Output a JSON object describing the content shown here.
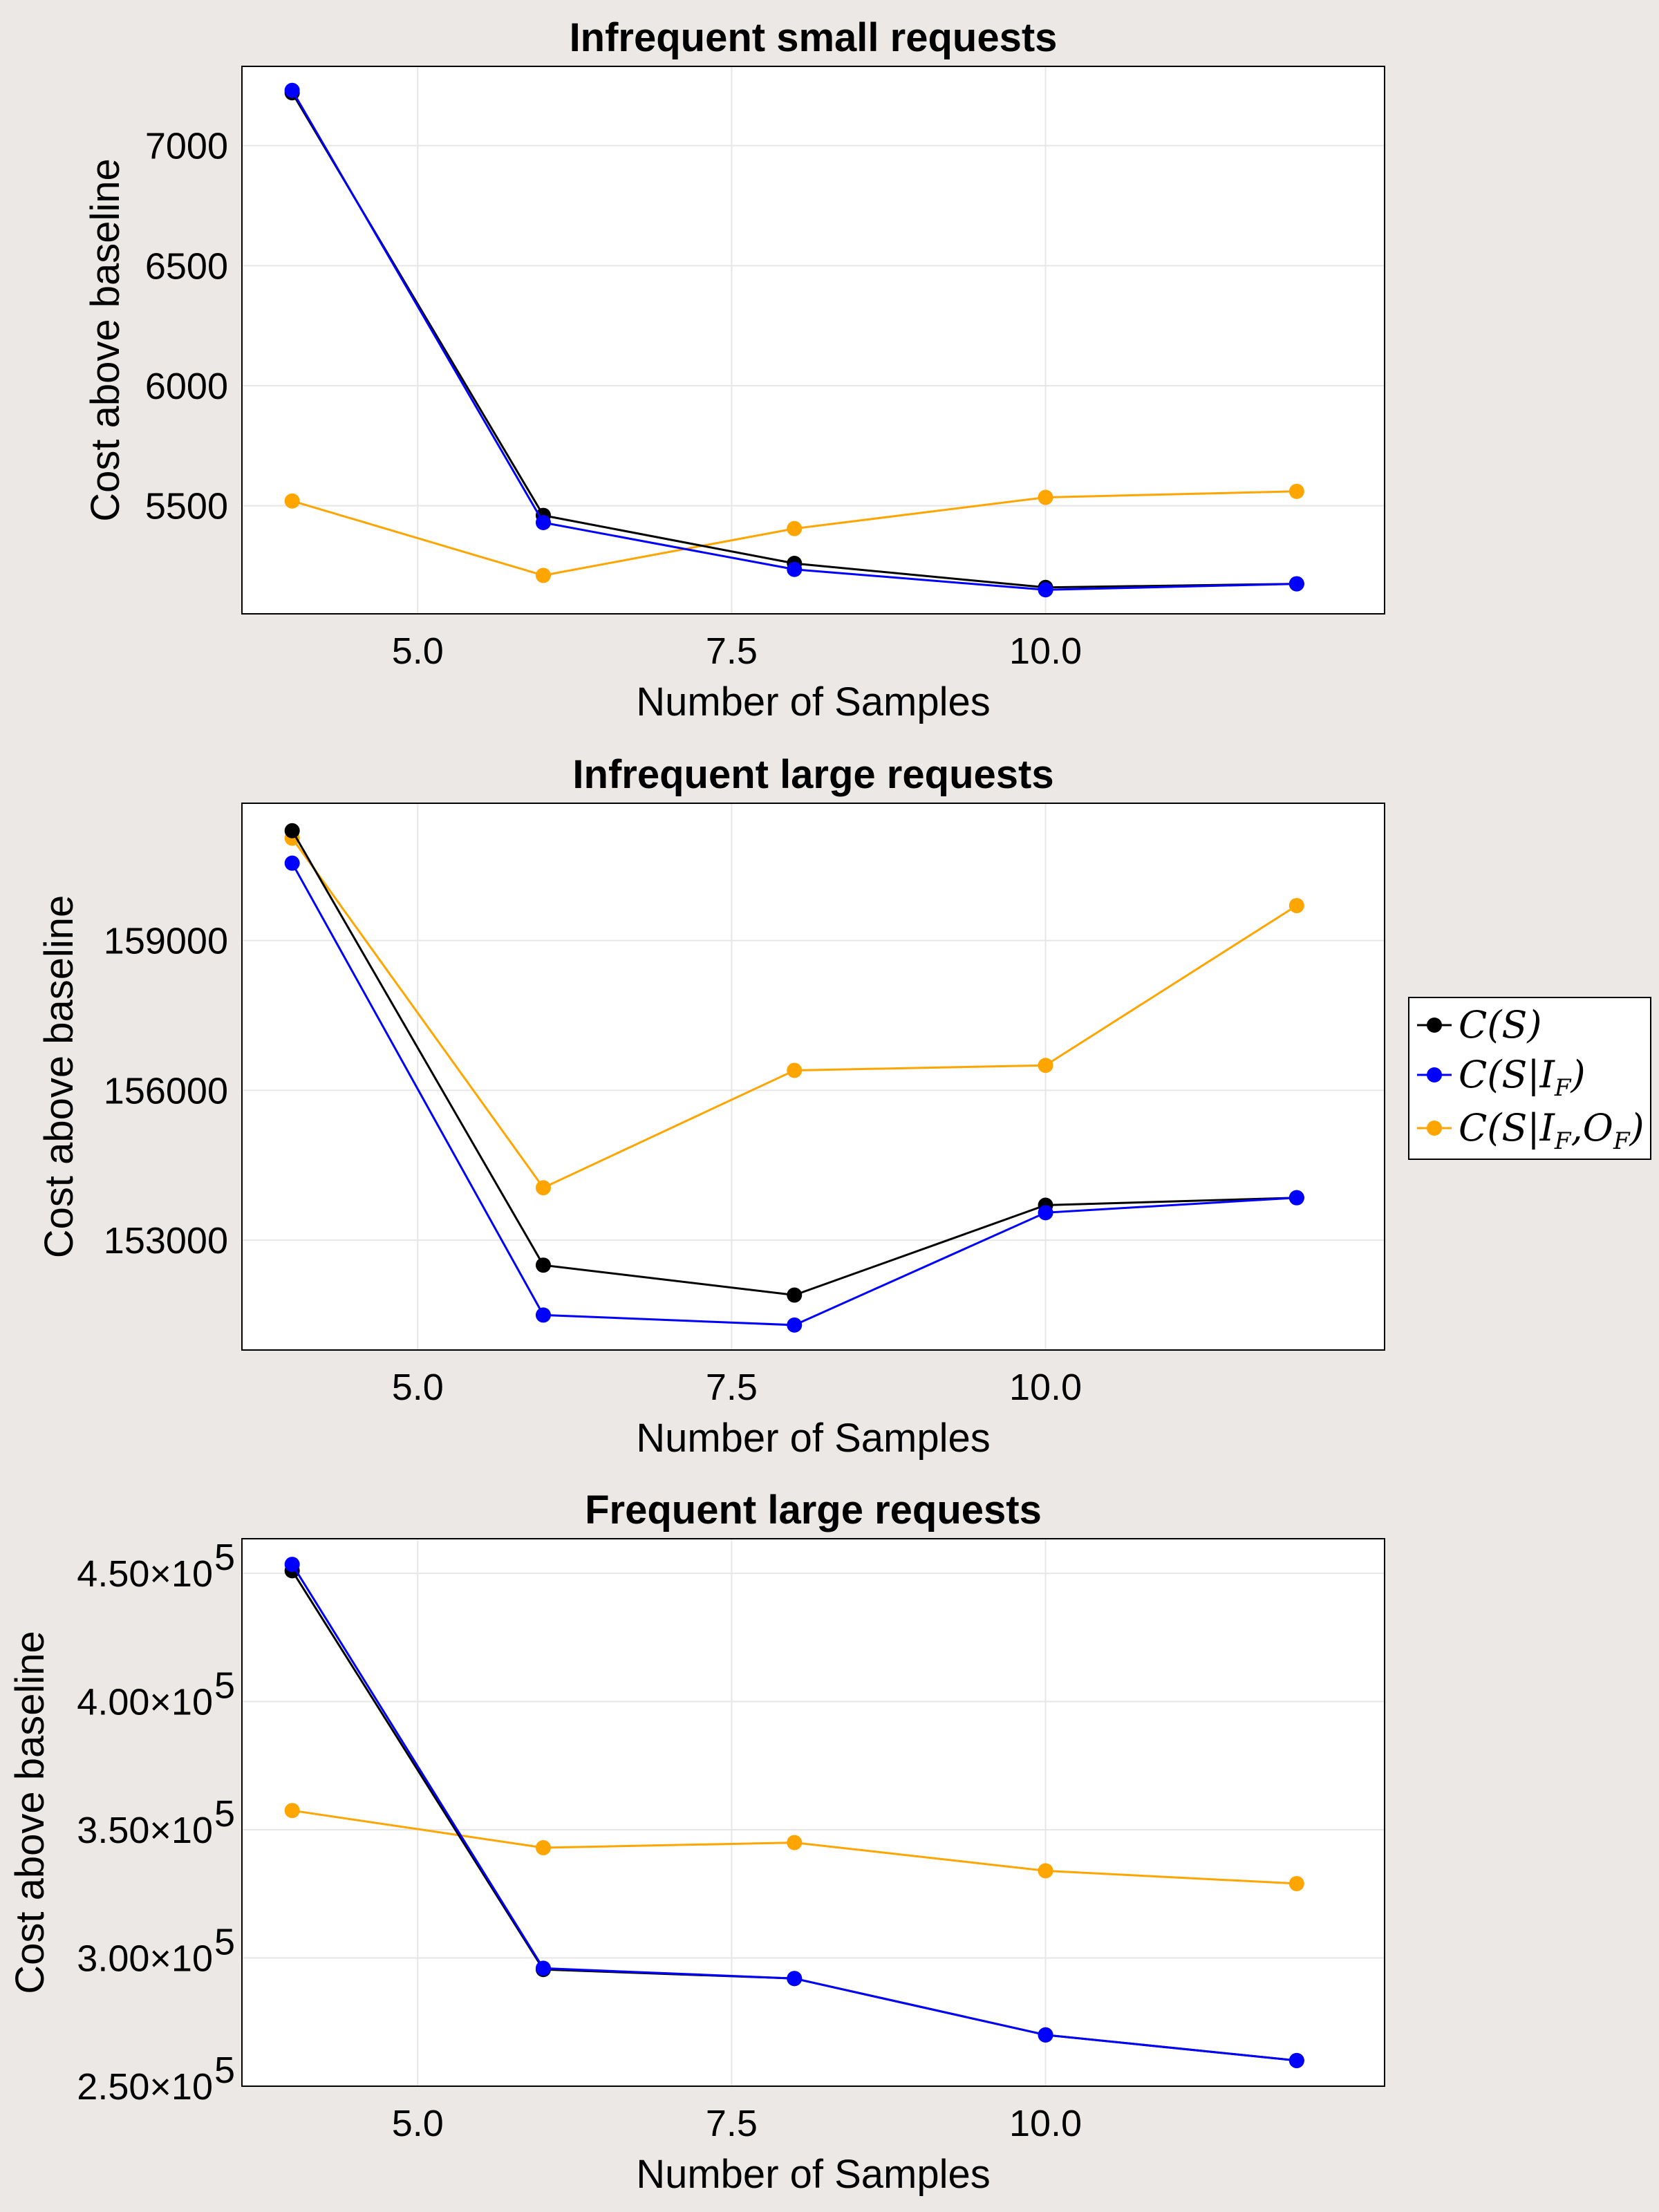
{
  "chart_data": [
    {
      "type": "line",
      "title": "Infrequent small requests",
      "xlabel": "Number of Samples",
      "ylabel": "Cost above baseline",
      "x": [
        4,
        6,
        8,
        10,
        12
      ],
      "xlim": [
        3.6,
        12.7
      ],
      "ylim": [
        5050,
        7330
      ],
      "xticks": [
        5.0,
        7.5,
        10.0
      ],
      "xtick_labels": [
        "5.0",
        "7.5",
        "10.0"
      ],
      "yticks": [
        5500,
        6000,
        6500,
        7000
      ],
      "ytick_labels": [
        "5500",
        "6000",
        "6500",
        "7000"
      ],
      "grid": true,
      "series": [
        {
          "name": "C(S)",
          "color": "#000000",
          "values": [
            7220,
            5460,
            5260,
            5160,
            5175
          ]
        },
        {
          "name": "C(S|I_F)",
          "color": "#0000ff",
          "values": [
            7230,
            5430,
            5235,
            5150,
            5175
          ]
        },
        {
          "name": "C(S|I_F,O_F)",
          "color": "#ffa500",
          "values": [
            5520,
            5210,
            5405,
            5535,
            5560
          ]
        }
      ]
    },
    {
      "type": "line",
      "title": "Infrequent large requests",
      "xlabel": "Number of Samples",
      "ylabel": "Cost above baseline",
      "x": [
        4,
        6,
        8,
        10,
        12
      ],
      "xlim": [
        3.6,
        12.7
      ],
      "ylim": [
        150800,
        161750
      ],
      "xticks": [
        5.0,
        7.5,
        10.0
      ],
      "xtick_labels": [
        "5.0",
        "7.5",
        "10.0"
      ],
      "yticks": [
        153000,
        156000,
        159000
      ],
      "ytick_labels": [
        "153000",
        "156000",
        "159000"
      ],
      "grid": true,
      "series": [
        {
          "name": "C(S)",
          "color": "#000000",
          "values": [
            161200,
            152500,
            151900,
            153700,
            153850
          ]
        },
        {
          "name": "C(S|I_F)",
          "color": "#0000ff",
          "values": [
            160550,
            151500,
            151300,
            153550,
            153850
          ]
        },
        {
          "name": "C(S|I_F,O_F)",
          "color": "#ffa500",
          "values": [
            161050,
            154050,
            156400,
            156500,
            159700
          ]
        }
      ]
    },
    {
      "type": "line",
      "title": "Frequent large requests",
      "xlabel": "Number of Samples",
      "ylabel": "Cost above baseline",
      "x": [
        4,
        6,
        8,
        10,
        12
      ],
      "xlim": [
        3.6,
        12.7
      ],
      "ylim": [
        250000,
        463500
      ],
      "xticks": [
        5.0,
        7.5,
        10.0
      ],
      "xtick_labels": [
        "5.0",
        "7.5",
        "10.0"
      ],
      "yticks": [
        250000,
        300000,
        350000,
        400000,
        450000
      ],
      "ytick_labels": [
        "2.50×10",
        "3.00×10",
        "3.50×10",
        "4.00×10",
        "4.50×10"
      ],
      "ytick_exponent": "5",
      "grid": true,
      "series": [
        {
          "name": "C(S)",
          "color": "#000000",
          "values": [
            451000,
            295500,
            292000,
            270000,
            260000
          ]
        },
        {
          "name": "C(S|I_F)",
          "color": "#0000ff",
          "values": [
            453500,
            296000,
            292000,
            270000,
            260000
          ]
        },
        {
          "name": "C(S|I_F,O_F)",
          "color": "#ffa500",
          "values": [
            357500,
            343000,
            345000,
            334000,
            329000
          ]
        }
      ]
    }
  ],
  "legend": {
    "placement": "right",
    "entries": [
      {
        "color": "#000000",
        "fn": "C(",
        "var": "S",
        "cond": "",
        "close": ")"
      },
      {
        "color": "#0000ff",
        "fn": "C(",
        "var": "S",
        "cond": "|I",
        "close": ")"
      },
      {
        "color": "#ffa500",
        "fn": "C(",
        "var": "S",
        "cond": "|I",
        "close": ")"
      }
    ]
  }
}
